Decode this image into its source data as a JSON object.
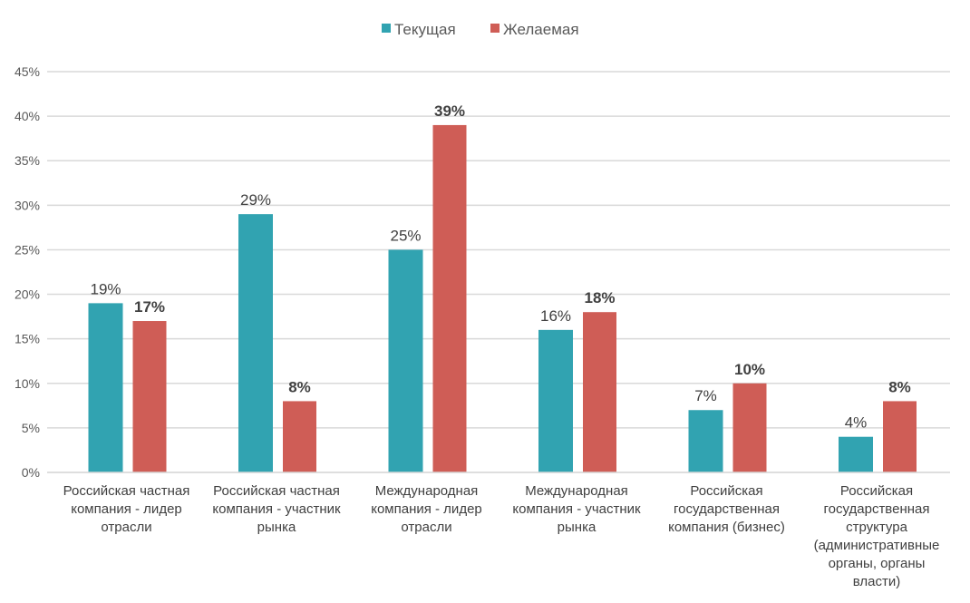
{
  "chart_data": {
    "type": "bar",
    "title": "",
    "xlabel": "",
    "ylabel": "",
    "ylim": [
      0,
      45
    ],
    "yticks": [
      "0%",
      "5%",
      "10%",
      "15%",
      "20%",
      "25%",
      "30%",
      "35%",
      "40%",
      "45%"
    ],
    "grid": true,
    "legend_position": "top-center",
    "categories": [
      [
        "Российская частная",
        "компания - лидер",
        "отрасли"
      ],
      [
        "Российская частная",
        "компания - участник",
        "рынка"
      ],
      [
        "Международная",
        "компания - лидер",
        "отрасли"
      ],
      [
        "Международная",
        "компания - участник",
        "рынка"
      ],
      [
        "Российская",
        "государственная",
        "компания (бизнес)"
      ],
      [
        "Российская",
        "государственная",
        "структура",
        "(административные",
        "органы, органы",
        "власти)"
      ]
    ],
    "series": [
      {
        "name": "Текущая",
        "color": "#31a3b1",
        "values": [
          19,
          29,
          25,
          16,
          7,
          4
        ],
        "labels": [
          "19%",
          "29%",
          "25%",
          "16%",
          "7%",
          "4%"
        ],
        "label_bold": false
      },
      {
        "name": "Желаемая",
        "color": "#cf5d56",
        "values": [
          17,
          8,
          39,
          18,
          10,
          8
        ],
        "labels": [
          "17%",
          "8%",
          "39%",
          "18%",
          "10%",
          "8%"
        ],
        "label_bold": true
      }
    ]
  }
}
